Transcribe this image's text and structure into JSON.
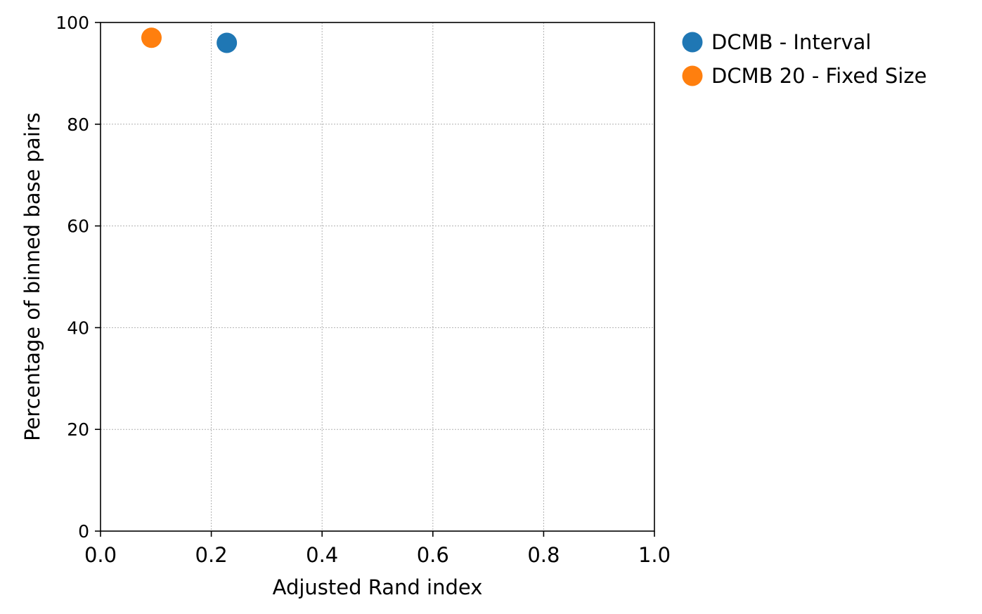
{
  "chart_data": {
    "type": "scatter",
    "title": "",
    "xlabel": "Adjusted Rand index",
    "ylabel": "Percentage of binned base pairs",
    "xlim": [
      0.0,
      1.0
    ],
    "ylim": [
      0,
      100
    ],
    "x_ticks": [
      0.0,
      0.2,
      0.4,
      0.6,
      0.8,
      1.0
    ],
    "x_tick_labels": [
      "0.0",
      "0.2",
      "0.4",
      "0.6",
      "0.8",
      "1.0"
    ],
    "y_ticks": [
      0,
      20,
      40,
      60,
      80,
      100
    ],
    "y_tick_labels": [
      "0",
      "20",
      "40",
      "60",
      "80",
      "100"
    ],
    "grid": true,
    "legend_position": "outside-top-right",
    "series": [
      {
        "name": "DCMB - Interval",
        "color": "#1f77b4",
        "points": [
          {
            "x": 0.228,
            "y": 96
          }
        ]
      },
      {
        "name": "DCMB 20 - Fixed Size",
        "color": "#ff7f0e",
        "points": [
          {
            "x": 0.092,
            "y": 97
          }
        ]
      }
    ]
  }
}
